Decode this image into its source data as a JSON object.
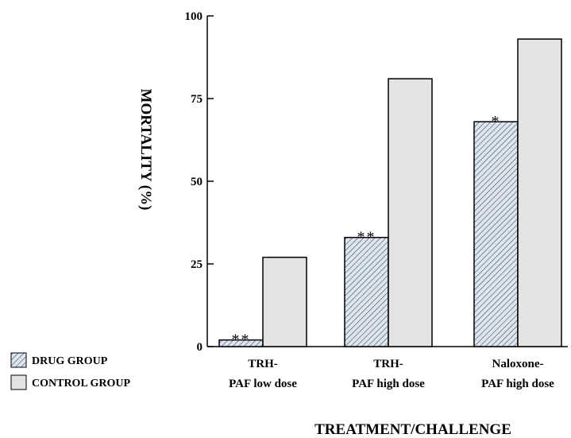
{
  "chart_data": {
    "type": "bar",
    "title": "",
    "xlabel": "TREATMENT/CHALLENGE",
    "ylabel": "MORTALITY (%)",
    "ylim": [
      0,
      100
    ],
    "yticks": [
      "0",
      "25",
      "50",
      "75",
      "100"
    ],
    "categories": [
      [
        "TRH-",
        "PAF low dose"
      ],
      [
        "TRH-",
        "PAF high dose"
      ],
      [
        "Naloxone-",
        "PAF high dose"
      ]
    ],
    "series": [
      {
        "name": "DRUG GROUP",
        "values": [
          2,
          33,
          68
        ],
        "fill": "hatched",
        "color": "#dde6f0"
      },
      {
        "name": "CONTROL GROUP",
        "values": [
          27,
          81,
          93
        ],
        "fill": "solid",
        "color": "#e3e3e3"
      }
    ],
    "significance": [
      "**",
      "**",
      "*"
    ],
    "legend_position": "bottom-left",
    "grid": false
  }
}
